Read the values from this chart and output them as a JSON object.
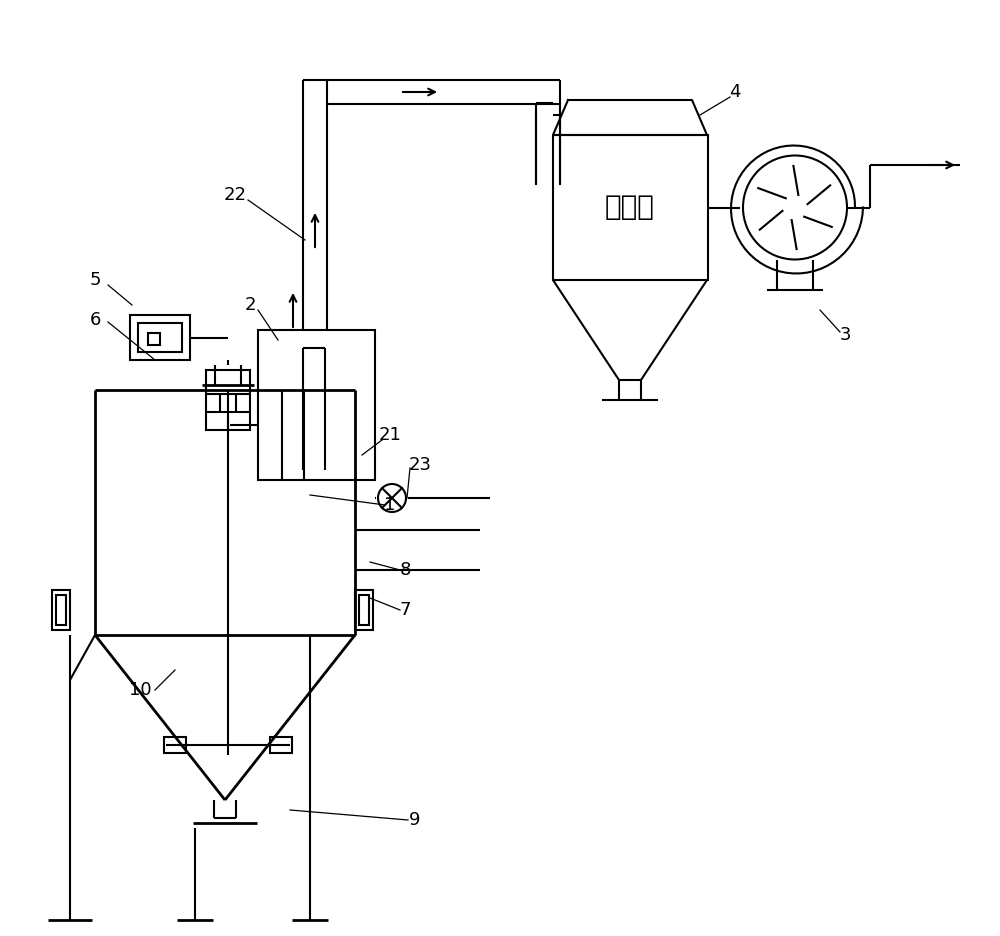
{
  "bg_color": "#ffffff",
  "line_color": "#000000",
  "lw": 1.5,
  "tlw": 2.0,
  "dust_text": "除尘器",
  "label_fs": 13,
  "leader_lw": 0.9
}
